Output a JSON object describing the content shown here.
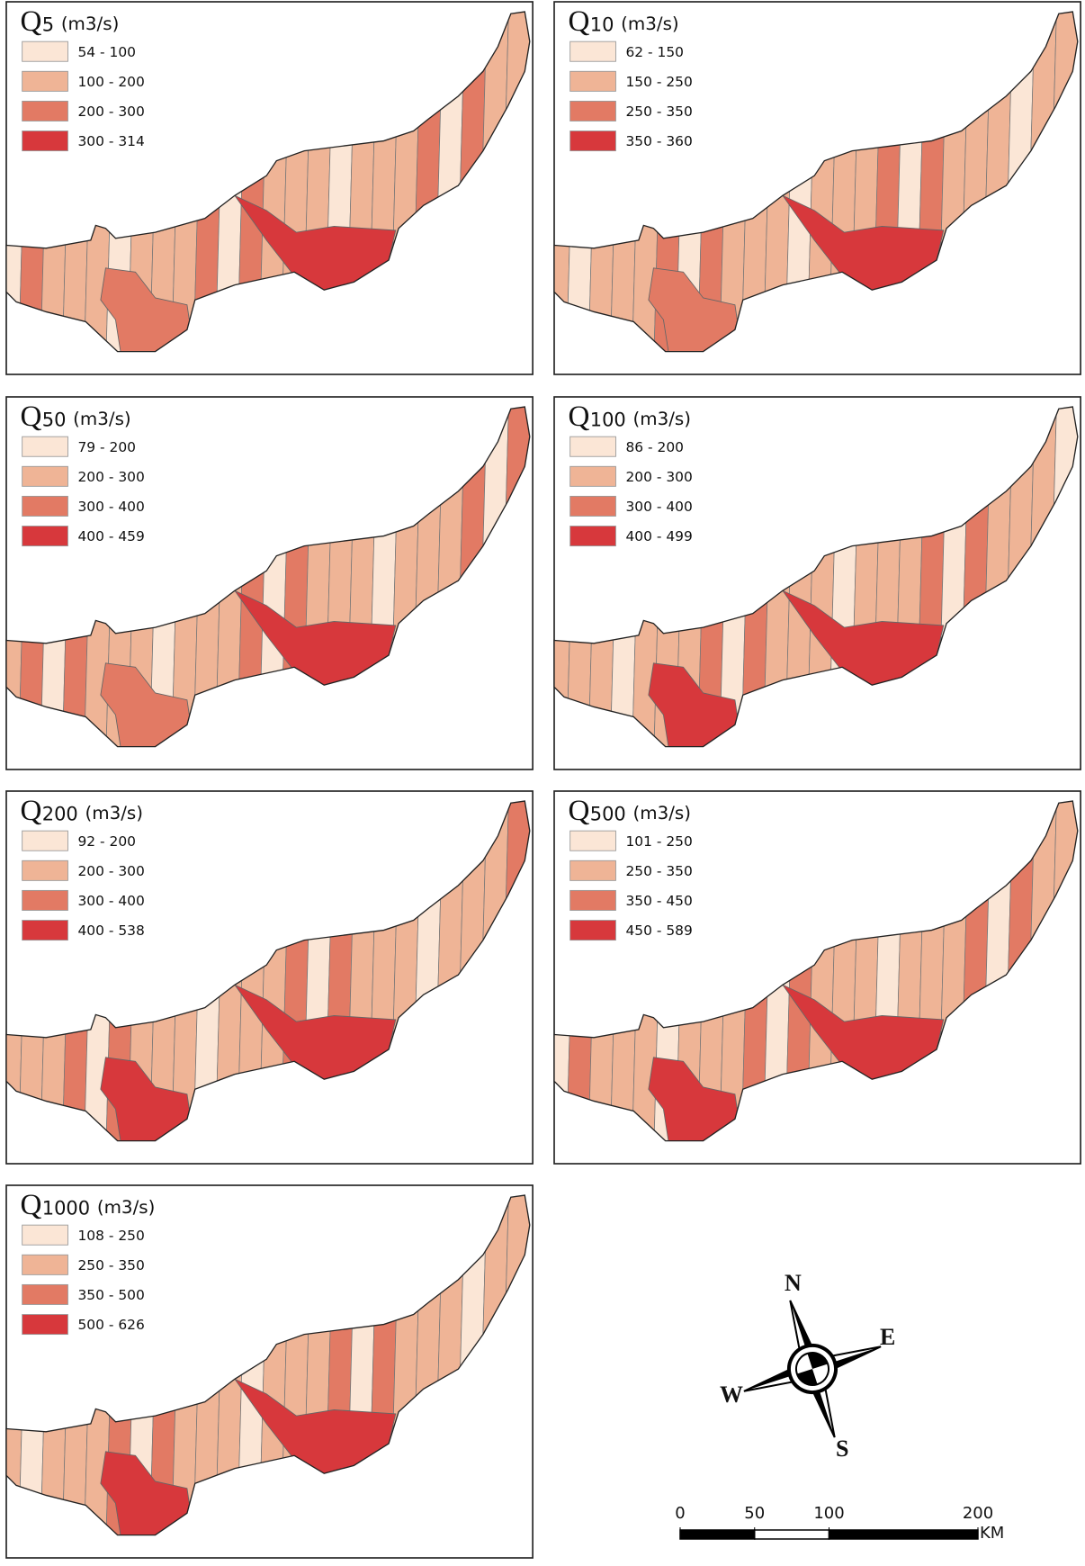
{
  "panels": [
    {
      "symbol": "Q",
      "period": "5",
      "unit": "(m3/s)",
      "legend": [
        "54 - 100",
        "100 - 200",
        "200 - 300",
        "300 - 314"
      ]
    },
    {
      "symbol": "Q",
      "period": "10",
      "unit": "(m3/s)",
      "legend": [
        "62 - 150",
        "150 - 250",
        "250 - 350",
        "350 - 360"
      ]
    },
    {
      "symbol": "Q",
      "period": "50",
      "unit": "(m3/s)",
      "legend": [
        "79 - 200",
        "200 - 300",
        "300 - 400",
        "400 - 459"
      ]
    },
    {
      "symbol": "Q",
      "period": "100",
      "unit": "(m3/s)",
      "legend": [
        "86 - 200",
        "200 - 300",
        "300 - 400",
        "400 - 499"
      ]
    },
    {
      "symbol": "Q",
      "period": "200",
      "unit": "(m3/s)",
      "legend": [
        "92 - 200",
        "200 - 300",
        "300 - 400",
        "400 - 538"
      ]
    },
    {
      "symbol": "Q",
      "period": "500",
      "unit": "(m3/s)",
      "legend": [
        "101 - 250",
        "250 - 350",
        "350 - 450",
        "450 - 589"
      ]
    },
    {
      "symbol": "Q",
      "period": "1000",
      "unit": "(m3/s)",
      "legend": [
        "108 - 250",
        "250 - 350",
        "350 - 500",
        "500 - 626"
      ]
    }
  ],
  "legend_colors": [
    "#fbe6d6",
    "#efb496",
    "#e27a64",
    "#d7383c"
  ],
  "compass": {
    "n": "N",
    "e": "E",
    "s": "S",
    "w": "W"
  },
  "scale_bar": {
    "ticks": [
      0,
      50,
      100,
      200
    ],
    "unit": "KM"
  }
}
